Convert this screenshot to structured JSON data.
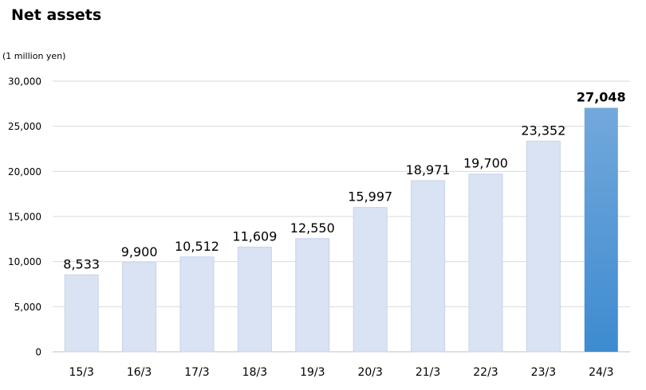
{
  "chart_data": {
    "type": "bar",
    "title": "Net assets",
    "unit_label": "(1 million yen)",
    "xlabel": "",
    "ylabel": "",
    "categories": [
      "15/3",
      "16/3",
      "17/3",
      "18/3",
      "19/3",
      "20/3",
      "21/3",
      "22/3",
      "23/3",
      "24/3"
    ],
    "values": [
      8533,
      9900,
      10512,
      11609,
      12550,
      15997,
      18971,
      19700,
      23352,
      27048
    ],
    "value_labels": [
      "8,533",
      "9,900",
      "10,512",
      "11,609",
      "12,550",
      "15,997",
      "18,971",
      "19,700",
      "23,352",
      "27,048"
    ],
    "highlight_index": 9,
    "ylim": [
      0,
      30000
    ],
    "yticks": [
      0,
      5000,
      10000,
      15000,
      20000,
      25000,
      30000
    ],
    "ytick_labels": [
      "0",
      "5,000",
      "10,000",
      "15,000",
      "20,000",
      "25,000",
      "30,000"
    ],
    "grid": true,
    "legend": "none",
    "colors": {
      "bar": "#dae3f3",
      "bar_stroke": "#c5d3ea",
      "highlight_top": "#73a8dc",
      "highlight_bottom": "#3d8bd0",
      "grid": "#d9d9d9",
      "axis": "#bfbfbf"
    }
  }
}
